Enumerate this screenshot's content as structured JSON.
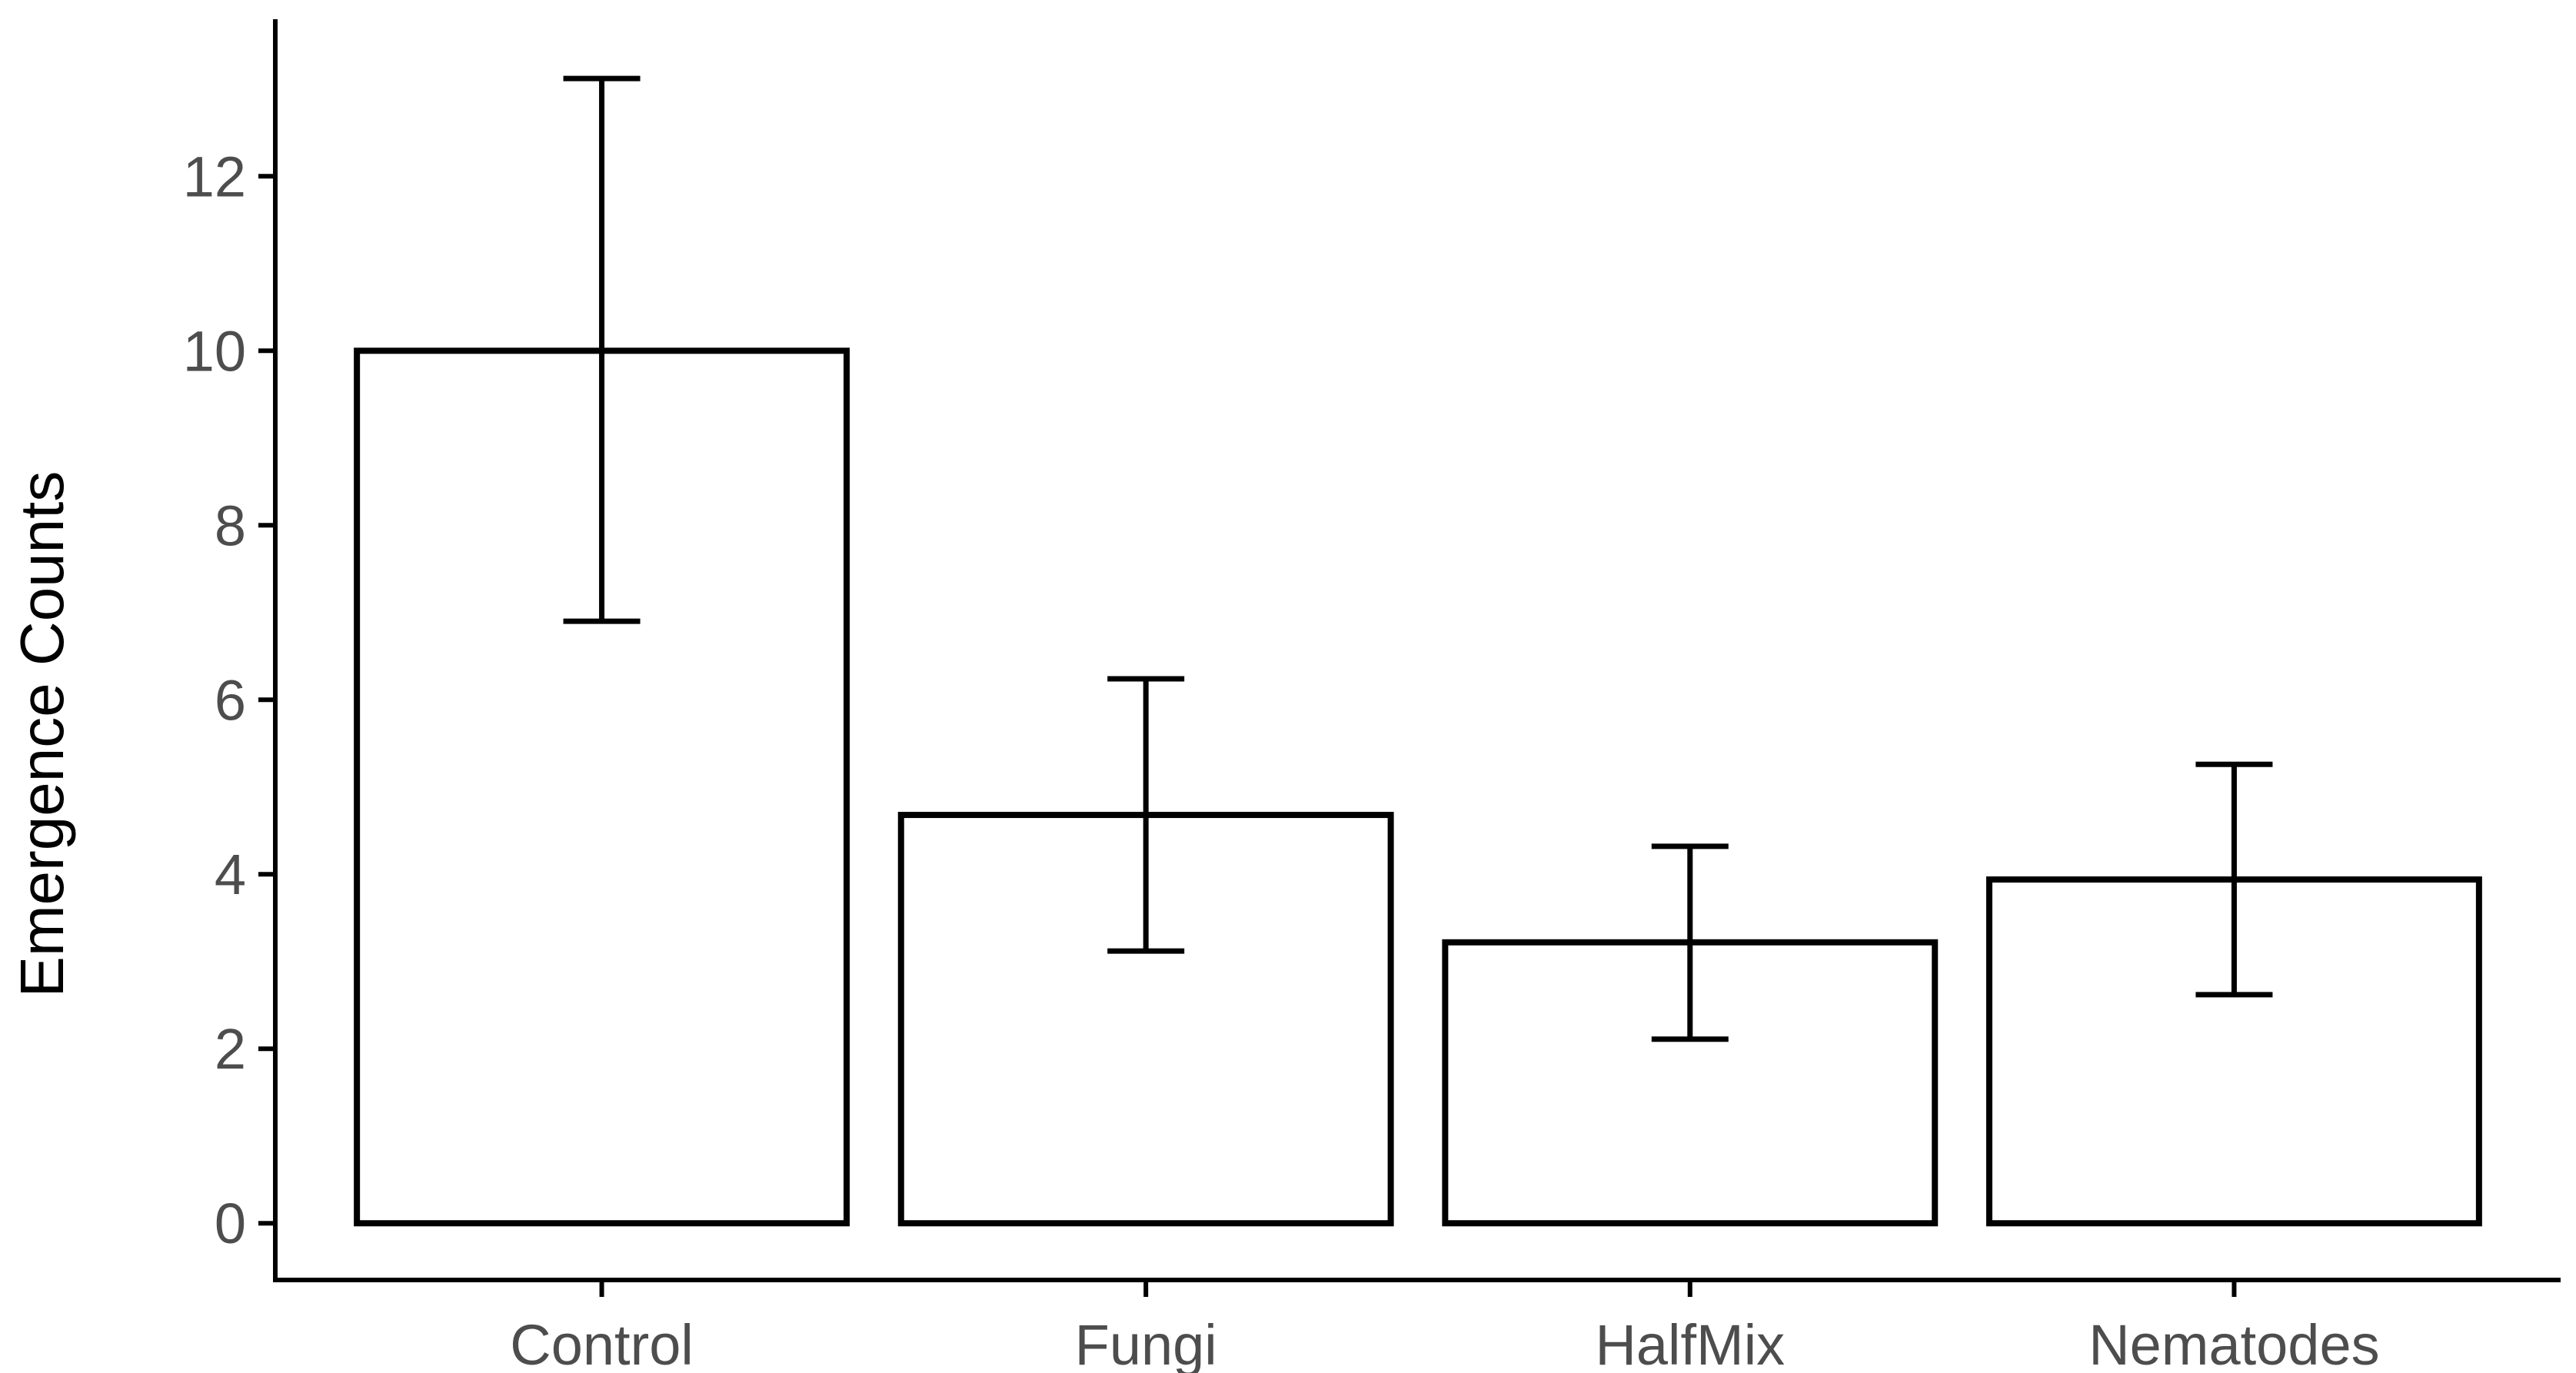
{
  "chart_data": {
    "type": "bar",
    "title": "",
    "xlabel": "",
    "ylabel": "Emergence Counts",
    "categories": [
      "Control",
      "Fungi",
      "HalfMix",
      "Nematodes"
    ],
    "values": [
      10.0,
      4.68,
      3.22,
      3.94
    ],
    "error_lower": [
      6.9,
      3.12,
      2.11,
      2.62
    ],
    "error_upper": [
      13.12,
      6.24,
      4.32,
      5.26
    ],
    "ylim": [
      -0.65,
      13.8
    ],
    "yticks": [
      0,
      2,
      4,
      6,
      8,
      10,
      12
    ],
    "ytick_labels": [
      "0",
      "2",
      "4",
      "6",
      "8",
      "10",
      "12"
    ],
    "grid": false,
    "legend": "none",
    "colors": {
      "bar_fill": "#ffffff",
      "bar_stroke": "#000000",
      "errorbar": "#000000",
      "axis": "#000000",
      "tick_label": "#4d4d4d"
    }
  }
}
